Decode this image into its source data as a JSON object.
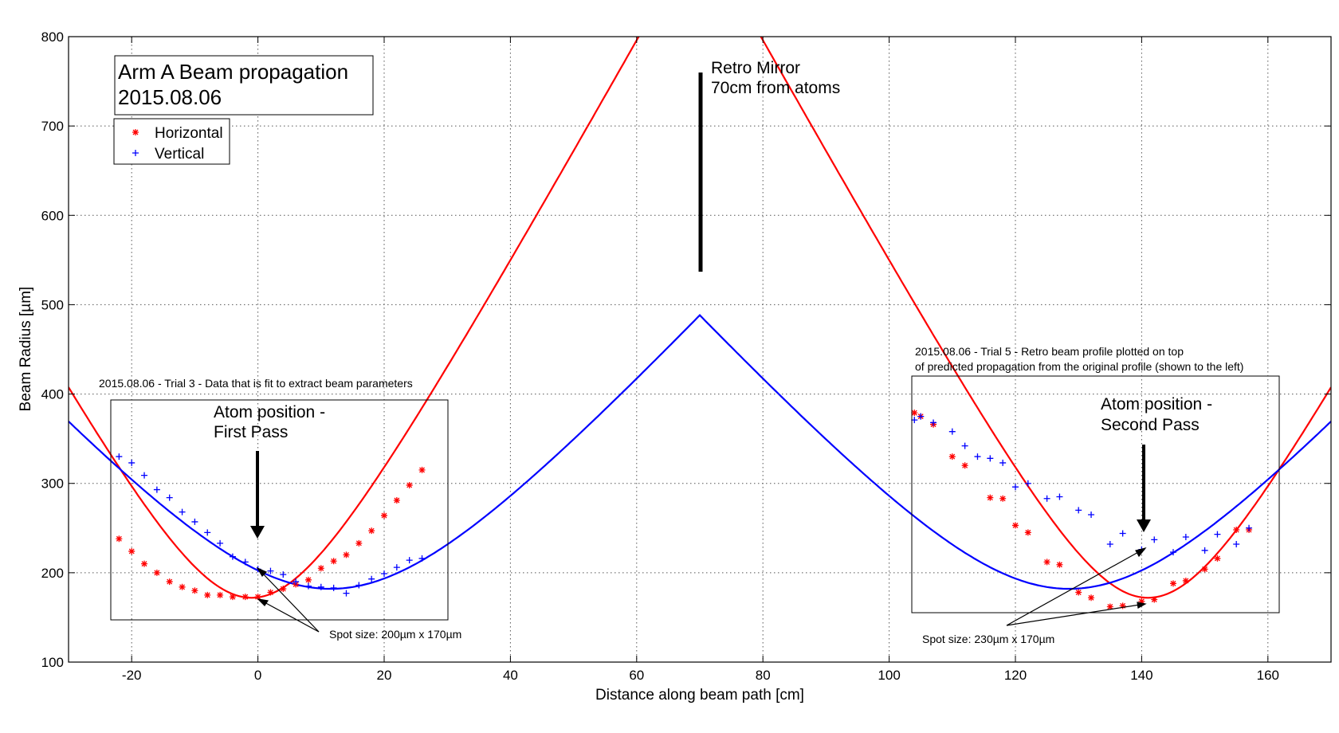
{
  "chart_data": {
    "type": "scatter",
    "xlabel": "Distance along beam path [cm]",
    "ylabel": "Beam Radius [µm]",
    "xlim": [
      -30,
      170
    ],
    "ylim": [
      100,
      800
    ],
    "xticks": [
      -20,
      0,
      20,
      40,
      60,
      80,
      100,
      120,
      140,
      160
    ],
    "yticks": [
      100,
      200,
      300,
      400,
      500,
      600,
      700,
      800
    ],
    "grid": true,
    "title_lines": [
      "Arm A Beam propagation",
      "2015.08.06"
    ],
    "legend": {
      "placement": "top-left",
      "entries": [
        {
          "name": "Horizontal",
          "color": "#ff0000"
        },
        {
          "name": "Vertical",
          "color": "#0000ff"
        }
      ]
    },
    "series": [
      {
        "name": "Horizontal",
        "color": "#ff0000",
        "points": [
          [
            -22,
            238
          ],
          [
            -20,
            224
          ],
          [
            -18,
            210
          ],
          [
            -16,
            200
          ],
          [
            -14,
            190
          ],
          [
            -12,
            184
          ],
          [
            -10,
            180
          ],
          [
            -8,
            175
          ],
          [
            -6,
            175
          ],
          [
            -4,
            173
          ],
          [
            -2,
            173
          ],
          [
            0,
            173
          ],
          [
            2,
            178
          ],
          [
            4,
            182
          ],
          [
            6,
            187
          ],
          [
            8,
            192
          ],
          [
            10,
            205
          ],
          [
            12,
            213
          ],
          [
            14,
            220
          ],
          [
            16,
            233
          ],
          [
            18,
            247
          ],
          [
            20,
            264
          ],
          [
            22,
            281
          ],
          [
            24,
            298
          ],
          [
            26,
            315
          ],
          [
            104,
            379
          ],
          [
            105,
            375
          ],
          [
            107,
            366
          ],
          [
            110,
            330
          ],
          [
            112,
            320
          ],
          [
            116,
            284
          ],
          [
            118,
            283
          ],
          [
            120,
            253
          ],
          [
            122,
            245
          ],
          [
            125,
            212
          ],
          [
            127,
            209
          ],
          [
            130,
            178
          ],
          [
            132,
            172
          ],
          [
            135,
            162
          ],
          [
            137,
            163
          ],
          [
            140,
            168
          ],
          [
            142,
            170
          ],
          [
            145,
            188
          ],
          [
            147,
            191
          ],
          [
            150,
            204
          ],
          [
            152,
            216
          ],
          [
            155,
            248
          ],
          [
            157,
            248
          ]
        ]
      },
      {
        "name": "Vertical",
        "color": "#0000ff",
        "points": [
          [
            -22,
            330
          ],
          [
            -20,
            323
          ],
          [
            -18,
            309
          ],
          [
            -16,
            293
          ],
          [
            -14,
            284
          ],
          [
            -12,
            268
          ],
          [
            -10,
            257
          ],
          [
            -8,
            245
          ],
          [
            -6,
            233
          ],
          [
            -4,
            218
          ],
          [
            -2,
            212
          ],
          [
            0,
            204
          ],
          [
            2,
            202
          ],
          [
            4,
            198
          ],
          [
            6,
            190
          ],
          [
            8,
            185
          ],
          [
            10,
            184
          ],
          [
            12,
            183
          ],
          [
            14,
            177
          ],
          [
            16,
            186
          ],
          [
            18,
            193
          ],
          [
            20,
            199
          ],
          [
            22,
            206
          ],
          [
            24,
            214
          ],
          [
            26,
            216
          ],
          [
            104,
            371
          ],
          [
            105,
            375
          ],
          [
            107,
            368
          ],
          [
            110,
            358
          ],
          [
            112,
            342
          ],
          [
            114,
            330
          ],
          [
            116,
            328
          ],
          [
            118,
            323
          ],
          [
            120,
            296
          ],
          [
            122,
            300
          ],
          [
            125,
            283
          ],
          [
            127,
            285
          ],
          [
            130,
            270
          ],
          [
            132,
            265
          ],
          [
            135,
            232
          ],
          [
            137,
            244
          ],
          [
            140,
            226
          ],
          [
            142,
            237
          ],
          [
            145,
            223
          ],
          [
            147,
            240
          ],
          [
            150,
            225
          ],
          [
            152,
            243
          ],
          [
            155,
            232
          ],
          [
            157,
            250
          ]
        ]
      }
    ],
    "fit_curves": [
      {
        "name": "Horizontal",
        "color": "#ff0000",
        "w0": 172,
        "waist_x": -1,
        "zr": 13.5,
        "mirror_x": 70
      },
      {
        "name": "Vertical",
        "color": "#0000ff",
        "w0": 182,
        "waist_x": 11.5,
        "zr": 23.5,
        "mirror_x": 70
      }
    ],
    "annotations": {
      "trial3_note": "2015.08.06 - Trial 3 - Data that is fit to extract beam parameters",
      "trial5_note_line1": "2015.08.06 - Trial 5 - Retro beam profile plotted on top",
      "trial5_note_line2": "of predicted propagation from the original profile (shown to the left)",
      "mirror_line1": "Retro Mirror",
      "mirror_line2": "70cm from atoms",
      "first_pass_line1": "Atom position -",
      "first_pass_line2": "First Pass",
      "second_pass_line1": "Atom position -",
      "second_pass_line2": "Second Pass",
      "spot1": "Spot size: 200µm x 170µm",
      "spot2": "Spot size: 230µm x 170µm"
    }
  }
}
